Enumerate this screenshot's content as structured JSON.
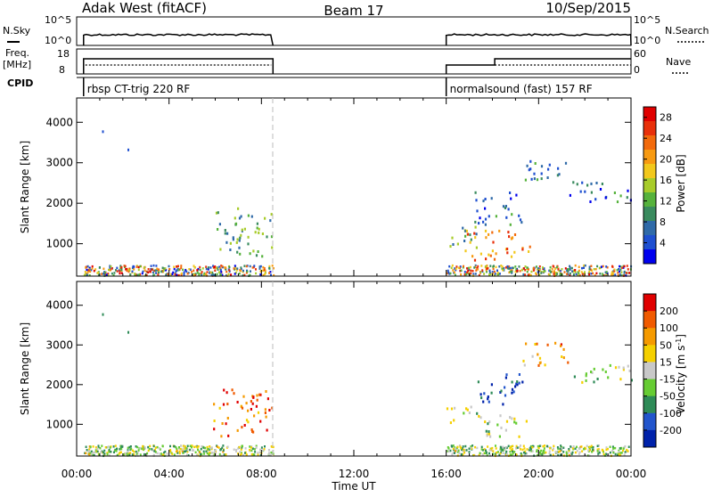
{
  "header": {
    "station": "Adak West (fitACF)",
    "beam": "Beam 17",
    "date": "10/Sep/2015"
  },
  "strip": {
    "nsky_label": "N.Sky",
    "nsky_ticks": [
      "10^5",
      "10^0"
    ],
    "nsearch_label": "N.Search",
    "freq_label_line1": "Freq.",
    "freq_label_line2": "[MHz]",
    "freq_ticks": [
      "18",
      "8"
    ],
    "nave_label": "Nave",
    "nave_ticks": [
      "60",
      "0"
    ],
    "cpid_label": "CPID",
    "cpid_segments": [
      {
        "text": "rbsp CT-trig 220 RF",
        "start": 0.3,
        "end": 8.5
      },
      {
        "text": "normalsound (fast) 157 RF",
        "start": 16.0,
        "end": 24.0
      }
    ]
  },
  "chart_data": [
    {
      "type": "heatmap",
      "name": "power",
      "ylabel": "Slant Range [km]",
      "xlabel": "Time UT",
      "xlim": [
        0,
        24
      ],
      "ylim": [
        200,
        4600
      ],
      "x_ticks": [
        "00:00",
        "04:00",
        "08:00",
        "12:00",
        "16:00",
        "20:00",
        "00:00"
      ],
      "y_ticks": [
        1000,
        2000,
        3000,
        4000
      ],
      "colorbar": {
        "label": "Power [dB]",
        "ticks": [
          "4",
          "8",
          "12",
          "16",
          "20",
          "24",
          "28"
        ],
        "range": [
          0,
          30
        ],
        "colors": [
          "#0000ee",
          "#1e4fd0",
          "#2f6aa8",
          "#3a8b5e",
          "#56b23c",
          "#a8cc2a",
          "#f2c81c",
          "#f79a12",
          "#f26a0c",
          "#e8300a",
          "#e00000"
        ]
      },
      "data_gap": [
        8.5,
        16.0
      ],
      "clusters": [
        {
          "t0": 5.9,
          "t1": 8.5,
          "r0": 700,
          "r1": 1900,
          "level": 0.35
        },
        {
          "t0": 16.0,
          "t1": 17.4,
          "r0": 900,
          "r1": 1500,
          "level": 0.35
        },
        {
          "t0": 16.8,
          "t1": 19.6,
          "r0": 550,
          "r1": 1350,
          "level": 0.75
        },
        {
          "t0": 17.2,
          "t1": 19.3,
          "r0": 1500,
          "r1": 2300,
          "level": 0.2
        },
        {
          "t0": 19.3,
          "t1": 21.3,
          "r0": 2500,
          "r1": 3100,
          "level": 0.2
        },
        {
          "t0": 21.3,
          "t1": 24.0,
          "r0": 2050,
          "r1": 2550,
          "level": 0.2
        }
      ]
    },
    {
      "type": "heatmap",
      "name": "velocity",
      "ylabel": "Slant Range [km]",
      "xlabel": "Time UT",
      "xlim": [
        0,
        24
      ],
      "ylim": [
        200,
        4600
      ],
      "x_ticks": [
        "00:00",
        "04:00",
        "08:00",
        "12:00",
        "16:00",
        "20:00",
        "00:00"
      ],
      "y_ticks": [
        1000,
        2000,
        3000,
        4000
      ],
      "colorbar": {
        "label": "Velocity [m s-1]",
        "label_unit_base": "Velocity [m s",
        "label_unit_exp": "-1",
        "label_unit_close": "]",
        "ticks": [
          "200",
          "100",
          "50",
          "15",
          "-15",
          "-50",
          "-100",
          "-200"
        ],
        "colors": [
          "#0022aa",
          "#2255cc",
          "#2e8b57",
          "#66cc33",
          "#c8c8c8",
          "#f5d000",
          "#f59a00",
          "#f05a00",
          "#e00000"
        ]
      },
      "data_gap": [
        8.5,
        16.0
      ],
      "clusters": [
        {
          "t0": 5.9,
          "t1": 8.5,
          "r0": 700,
          "r1": 1900,
          "level": 0.85
        },
        {
          "t0": 16.0,
          "t1": 17.6,
          "r0": 1000,
          "r1": 1500,
          "level": 0.45
        },
        {
          "t0": 17.6,
          "t1": 19.5,
          "r0": 600,
          "r1": 1300,
          "level": 0.45
        },
        {
          "t0": 17.2,
          "t1": 19.3,
          "r0": 1500,
          "r1": 2300,
          "level": 0.1
        },
        {
          "t0": 19.3,
          "t1": 21.3,
          "r0": 2500,
          "r1": 3100,
          "level": 0.75
        },
        {
          "t0": 21.3,
          "t1": 24.0,
          "r0": 2050,
          "r1": 2550,
          "level": 0.45
        }
      ]
    }
  ]
}
